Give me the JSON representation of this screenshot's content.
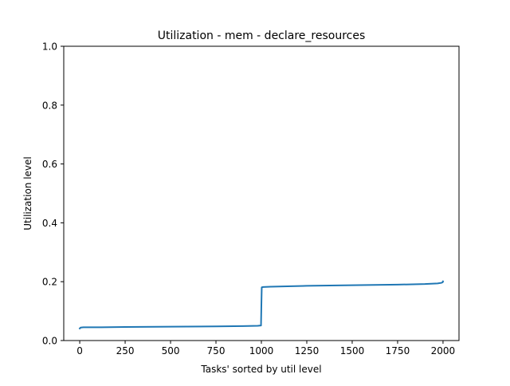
{
  "chart_data": {
    "type": "line",
    "title": "Utilization - mem - declare_resources",
    "xlabel": "Tasks' sorted by util level",
    "ylabel": "Utilization level",
    "xlim": [
      -88,
      2088
    ],
    "ylim": [
      0.0,
      1.0
    ],
    "xticks": [
      0,
      250,
      500,
      750,
      1000,
      1250,
      1500,
      1750,
      2000
    ],
    "xtick_labels": [
      "0",
      "250",
      "500",
      "750",
      "1000",
      "1250",
      "1500",
      "1750",
      "2000"
    ],
    "yticks": [
      0.0,
      0.2,
      0.4,
      0.6,
      0.8,
      1.0
    ],
    "ytick_labels": [
      "0.0",
      "0.2",
      "0.4",
      "0.6",
      "0.8",
      "1.0"
    ],
    "grid": false,
    "legend": "none",
    "series": [
      {
        "color": "#1f77b4",
        "x": [
          0,
          5,
          20,
          100,
          250,
          500,
          750,
          900,
          980,
          998,
          1000,
          1002,
          1010,
          1050,
          1250,
          1500,
          1750,
          1900,
          1970,
          1990,
          1998,
          2000
        ],
        "y": [
          0.041,
          0.044,
          0.045,
          0.045,
          0.046,
          0.047,
          0.048,
          0.049,
          0.05,
          0.051,
          0.12,
          0.181,
          0.182,
          0.183,
          0.186,
          0.188,
          0.19,
          0.192,
          0.194,
          0.196,
          0.198,
          0.201
        ]
      }
    ]
  }
}
